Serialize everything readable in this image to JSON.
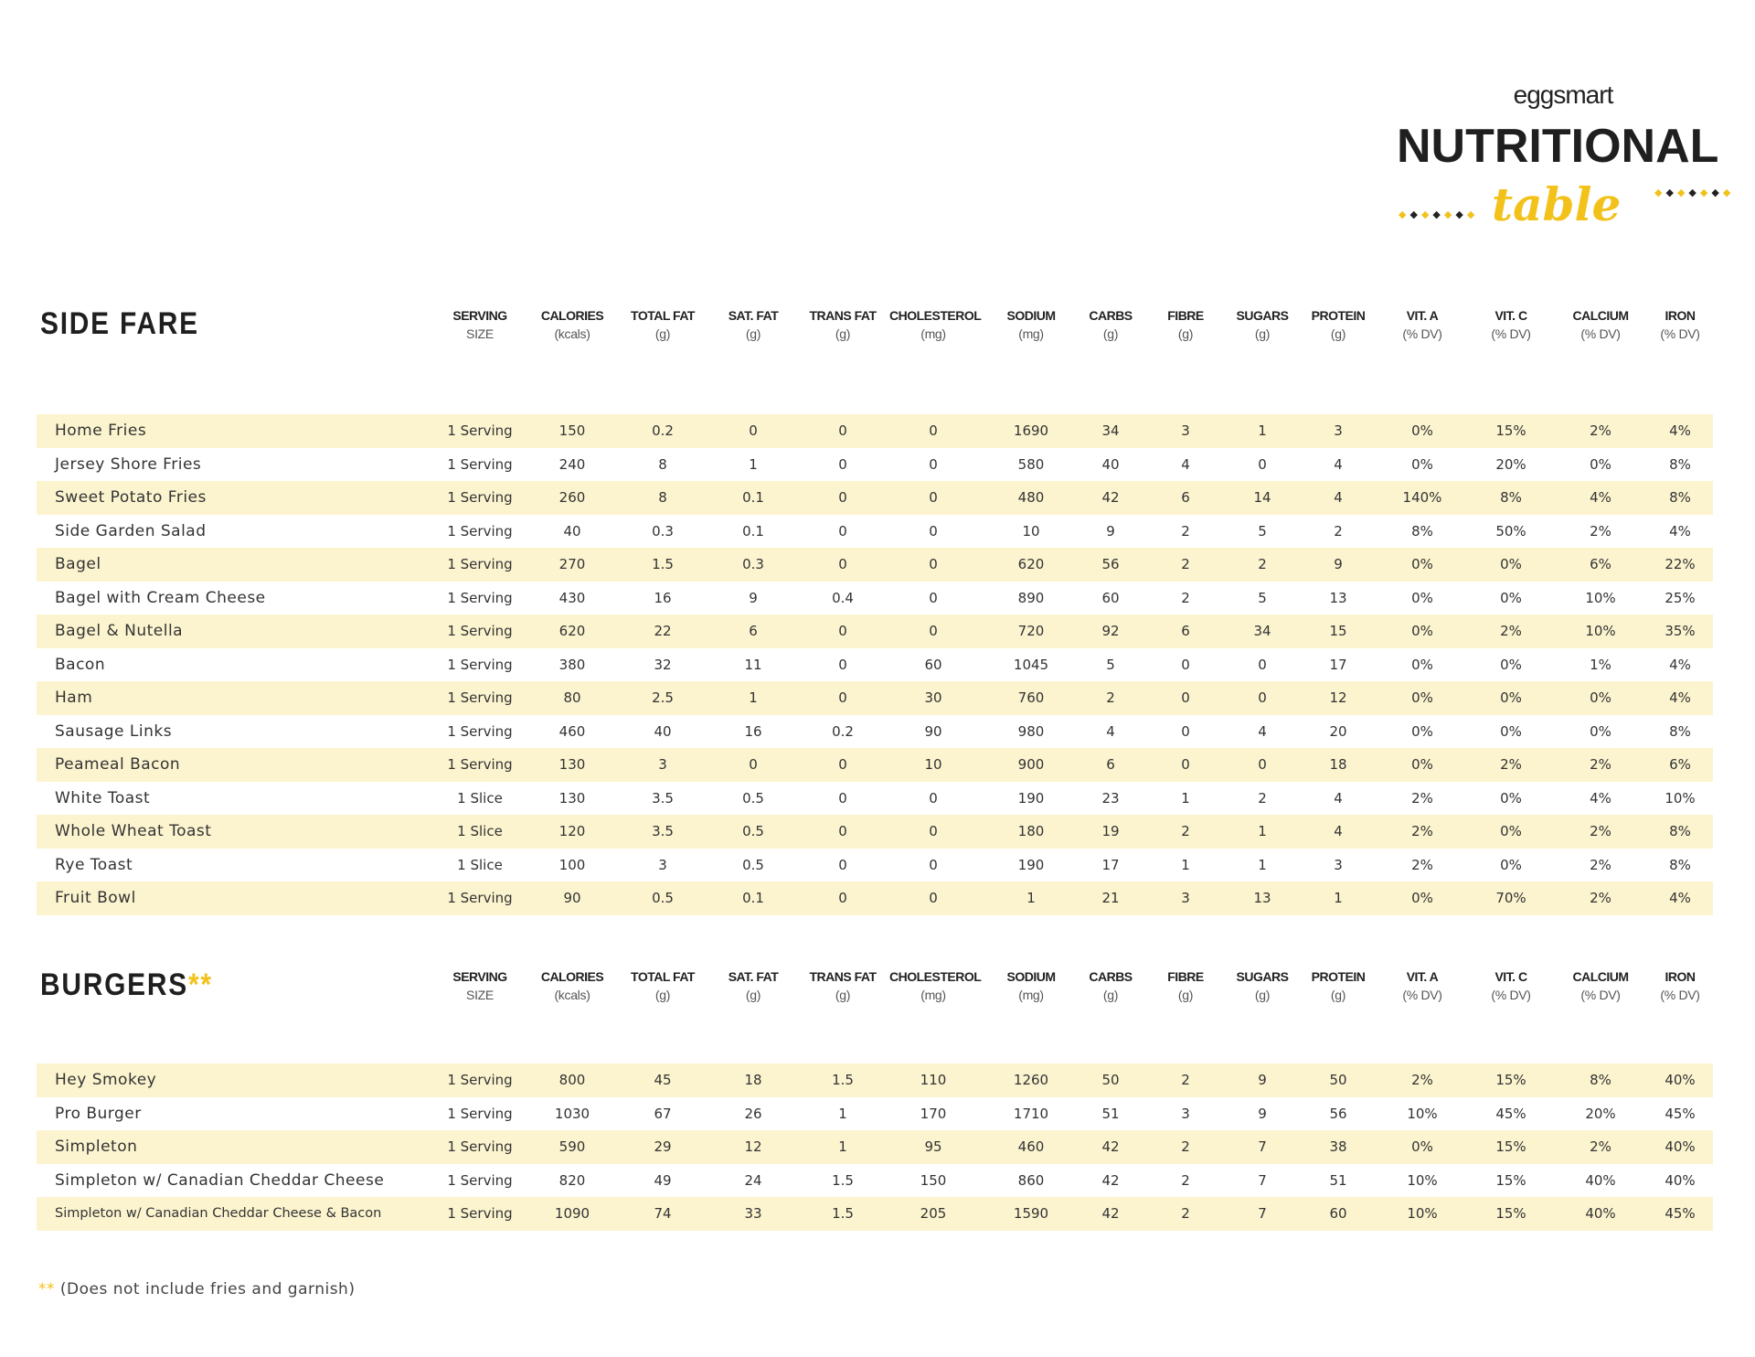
{
  "logo": {
    "brand": "eggsmart",
    "title": "NUTRITIONAL",
    "subtitle": "table"
  },
  "colors": {
    "accent": "#f2c21b",
    "row_band": "#fcf4cf",
    "text": "#222222"
  },
  "columns": [
    {
      "label": "SERVING",
      "unit": "SIZE"
    },
    {
      "label": "CALORIES",
      "unit": "(kcals)"
    },
    {
      "label": "TOTAL FAT",
      "unit": "(g)"
    },
    {
      "label": "SAT. FAT",
      "unit": "(g)"
    },
    {
      "label": "TRANS FAT",
      "unit": "(g)"
    },
    {
      "label": "CHOLESTEROL",
      "unit": "(mg)"
    },
    {
      "label": "SODIUM",
      "unit": "(mg)"
    },
    {
      "label": "CARBS",
      "unit": "(g)"
    },
    {
      "label": "FIBRE",
      "unit": "(g)"
    },
    {
      "label": "SUGARS",
      "unit": "(g)"
    },
    {
      "label": "PROTEIN",
      "unit": "(g)"
    },
    {
      "label": "VIT. A",
      "unit": "(% DV)"
    },
    {
      "label": "VIT. C",
      "unit": "(% DV)"
    },
    {
      "label": "CALCIUM",
      "unit": "(% DV)"
    },
    {
      "label": "IRON",
      "unit": "(% DV)"
    }
  ],
  "sections": [
    {
      "title": "SIDE FARE",
      "stars": "",
      "rows": [
        [
          "Home Fries",
          "1 Serving",
          "150",
          "0.2",
          "0",
          "0",
          "0",
          "1690",
          "34",
          "3",
          "1",
          "3",
          "0%",
          "15%",
          "2%",
          "4%"
        ],
        [
          "Jersey Shore Fries",
          "1 Serving",
          "240",
          "8",
          "1",
          "0",
          "0",
          "580",
          "40",
          "4",
          "0",
          "4",
          "0%",
          "20%",
          "0%",
          "8%"
        ],
        [
          "Sweet Potato Fries",
          "1 Serving",
          "260",
          "8",
          "0.1",
          "0",
          "0",
          "480",
          "42",
          "6",
          "14",
          "4",
          "140%",
          "8%",
          "4%",
          "8%"
        ],
        [
          "Side Garden Salad",
          "1 Serving",
          "40",
          "0.3",
          "0.1",
          "0",
          "0",
          "10",
          "9",
          "2",
          "5",
          "2",
          "8%",
          "50%",
          "2%",
          "4%"
        ],
        [
          "Bagel",
          "1 Serving",
          "270",
          "1.5",
          "0.3",
          "0",
          "0",
          "620",
          "56",
          "2",
          "2",
          "9",
          "0%",
          "0%",
          "6%",
          "22%"
        ],
        [
          "Bagel with Cream Cheese",
          "1 Serving",
          "430",
          "16",
          "9",
          "0.4",
          "0",
          "890",
          "60",
          "2",
          "5",
          "13",
          "0%",
          "0%",
          "10%",
          "25%"
        ],
        [
          "Bagel & Nutella",
          "1 Serving",
          "620",
          "22",
          "6",
          "0",
          "0",
          "720",
          "92",
          "6",
          "34",
          "15",
          "0%",
          "2%",
          "10%",
          "35%"
        ],
        [
          "Bacon",
          "1 Serving",
          "380",
          "32",
          "11",
          "0",
          "60",
          "1045",
          "5",
          "0",
          "0",
          "17",
          "0%",
          "0%",
          "1%",
          "4%"
        ],
        [
          "Ham",
          "1 Serving",
          "80",
          "2.5",
          "1",
          "0",
          "30",
          "760",
          "2",
          "0",
          "0",
          "12",
          "0%",
          "0%",
          "0%",
          "4%"
        ],
        [
          "Sausage Links",
          "1 Serving",
          "460",
          "40",
          "16",
          "0.2",
          "90",
          "980",
          "4",
          "0",
          "4",
          "20",
          "0%",
          "0%",
          "0%",
          "8%"
        ],
        [
          "Peameal Bacon",
          "1 Serving",
          "130",
          "3",
          "0",
          "0",
          "10",
          "900",
          "6",
          "0",
          "0",
          "18",
          "0%",
          "2%",
          "2%",
          "6%"
        ],
        [
          "White Toast",
          "1 Slice",
          "130",
          "3.5",
          "0.5",
          "0",
          "0",
          "190",
          "23",
          "1",
          "2",
          "4",
          "2%",
          "0%",
          "4%",
          "10%"
        ],
        [
          "Whole Wheat Toast",
          "1 Slice",
          "120",
          "3.5",
          "0.5",
          "0",
          "0",
          "180",
          "19",
          "2",
          "1",
          "4",
          "2%",
          "0%",
          "2%",
          "8%"
        ],
        [
          "Rye Toast",
          "1 Slice",
          "100",
          "3",
          "0.5",
          "0",
          "0",
          "190",
          "17",
          "1",
          "1",
          "3",
          "2%",
          "0%",
          "2%",
          "8%"
        ],
        [
          "Fruit Bowl",
          "1 Serving",
          "90",
          "0.5",
          "0.1",
          "0",
          "0",
          "1",
          "21",
          "3",
          "13",
          "1",
          "0%",
          "70%",
          "2%",
          "4%"
        ]
      ]
    },
    {
      "title": "BURGERS",
      "stars": "**",
      "rows": [
        [
          "Hey Smokey",
          "1 Serving",
          "800",
          "45",
          "18",
          "1.5",
          "110",
          "1260",
          "50",
          "2",
          "9",
          "50",
          "2%",
          "15%",
          "8%",
          "40%"
        ],
        [
          "Pro Burger",
          "1 Serving",
          "1030",
          "67",
          "26",
          "1",
          "170",
          "1710",
          "51",
          "3",
          "9",
          "56",
          "10%",
          "45%",
          "20%",
          "45%"
        ],
        [
          "Simpleton",
          "1 Serving",
          "590",
          "29",
          "12",
          "1",
          "95",
          "460",
          "42",
          "2",
          "7",
          "38",
          "0%",
          "15%",
          "2%",
          "40%"
        ],
        [
          "Simpleton w/ Canadian Cheddar Cheese",
          "1 Serving",
          "820",
          "49",
          "24",
          "1.5",
          "150",
          "860",
          "42",
          "2",
          "7",
          "51",
          "10%",
          "15%",
          "40%",
          "40%"
        ],
        [
          "Simpleton w/ Canadian Cheddar Cheese & Bacon",
          "1 Serving",
          "1090",
          "74",
          "33",
          "1.5",
          "205",
          "1590",
          "42",
          "2",
          "7",
          "60",
          "10%",
          "15%",
          "40%",
          "45%"
        ]
      ]
    }
  ],
  "footnote": {
    "stars": "**",
    "text": "(Does not include fries and garnish)"
  }
}
